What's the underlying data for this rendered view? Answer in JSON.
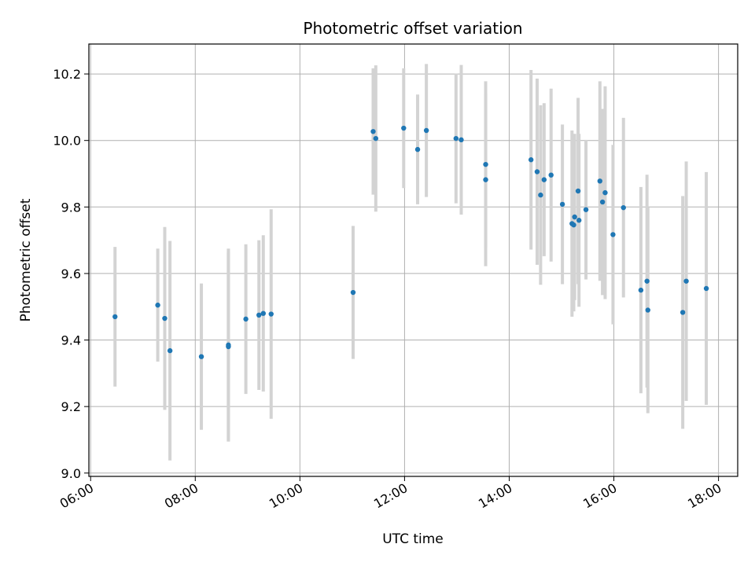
{
  "chart_data": {
    "type": "scatter",
    "title": "Photometric offset variation",
    "xlabel": "UTC time",
    "ylabel": "Photometric offset",
    "x_ticks": [
      "06:00",
      "08:00",
      "10:00",
      "12:00",
      "14:00",
      "16:00",
      "18:00"
    ],
    "y_ticks": [
      "9.0",
      "9.2",
      "9.4",
      "9.6",
      "9.8",
      "10.0",
      "10.2"
    ],
    "xlim": [
      "05:58",
      "18:22"
    ],
    "ylim": [
      8.99,
      10.29
    ],
    "grid": true,
    "colors": {
      "point": "#1f77b4",
      "errorbar": "#d3d3d3",
      "grid": "#b0b0b0"
    },
    "points": [
      {
        "x": "06:28",
        "y": 9.47,
        "err": 0.21
      },
      {
        "x": "07:17",
        "y": 9.505,
        "err": 0.17
      },
      {
        "x": "07:25",
        "y": 9.465,
        "err": 0.275
      },
      {
        "x": "07:31",
        "y": 9.368,
        "err": 0.33
      },
      {
        "x": "08:07",
        "y": 9.35,
        "err": 0.22
      },
      {
        "x": "08:38",
        "y": 9.385,
        "err": 0.29
      },
      {
        "x": "08:38",
        "y": 9.38,
        "err": 0.285
      },
      {
        "x": "08:58",
        "y": 9.463,
        "err": 0.225
      },
      {
        "x": "09:13",
        "y": 9.475,
        "err": 0.225
      },
      {
        "x": "09:18",
        "y": 9.48,
        "err": 0.235
      },
      {
        "x": "09:27",
        "y": 9.478,
        "err": 0.315
      },
      {
        "x": "11:01",
        "y": 9.543,
        "err": 0.2
      },
      {
        "x": "11:24",
        "y": 10.027,
        "err": 0.19
      },
      {
        "x": "11:27",
        "y": 10.006,
        "err": 0.22
      },
      {
        "x": "11:59",
        "y": 10.037,
        "err": 0.18
      },
      {
        "x": "12:15",
        "y": 9.973,
        "err": 0.165
      },
      {
        "x": "12:25",
        "y": 10.03,
        "err": 0.2
      },
      {
        "x": "12:59",
        "y": 10.006,
        "err": 0.195
      },
      {
        "x": "13:05",
        "y": 10.002,
        "err": 0.225
      },
      {
        "x": "13:33",
        "y": 9.928,
        "err": 0.25
      },
      {
        "x": "13:33",
        "y": 9.882,
        "err": 0.26
      },
      {
        "x": "14:25",
        "y": 9.942,
        "err": 0.27
      },
      {
        "x": "14:32",
        "y": 9.906,
        "err": 0.28
      },
      {
        "x": "14:36",
        "y": 9.836,
        "err": 0.27
      },
      {
        "x": "14:40",
        "y": 9.882,
        "err": 0.23
      },
      {
        "x": "14:48",
        "y": 9.896,
        "err": 0.26
      },
      {
        "x": "15:01",
        "y": 9.808,
        "err": 0.24
      },
      {
        "x": "15:12",
        "y": 9.75,
        "err": 0.28
      },
      {
        "x": "15:14",
        "y": 9.746,
        "err": 0.26
      },
      {
        "x": "15:15",
        "y": 9.77,
        "err": 0.25
      },
      {
        "x": "15:19",
        "y": 9.848,
        "err": 0.28
      },
      {
        "x": "15:20",
        "y": 9.76,
        "err": 0.26
      },
      {
        "x": "15:28",
        "y": 9.792,
        "err": 0.21
      },
      {
        "x": "15:44",
        "y": 9.878,
        "err": 0.3
      },
      {
        "x": "15:47",
        "y": 9.815,
        "err": 0.28
      },
      {
        "x": "15:50",
        "y": 9.843,
        "err": 0.32
      },
      {
        "x": "15:59",
        "y": 9.717,
        "err": 0.27
      },
      {
        "x": "16:11",
        "y": 9.798,
        "err": 0.27
      },
      {
        "x": "16:31",
        "y": 9.55,
        "err": 0.31
      },
      {
        "x": "16:38",
        "y": 9.577,
        "err": 0.32
      },
      {
        "x": "16:39",
        "y": 9.49,
        "err": 0.31
      },
      {
        "x": "17:19",
        "y": 9.483,
        "err": 0.35
      },
      {
        "x": "17:23",
        "y": 9.577,
        "err": 0.36
      },
      {
        "x": "17:46",
        "y": 9.555,
        "err": 0.35
      }
    ]
  }
}
